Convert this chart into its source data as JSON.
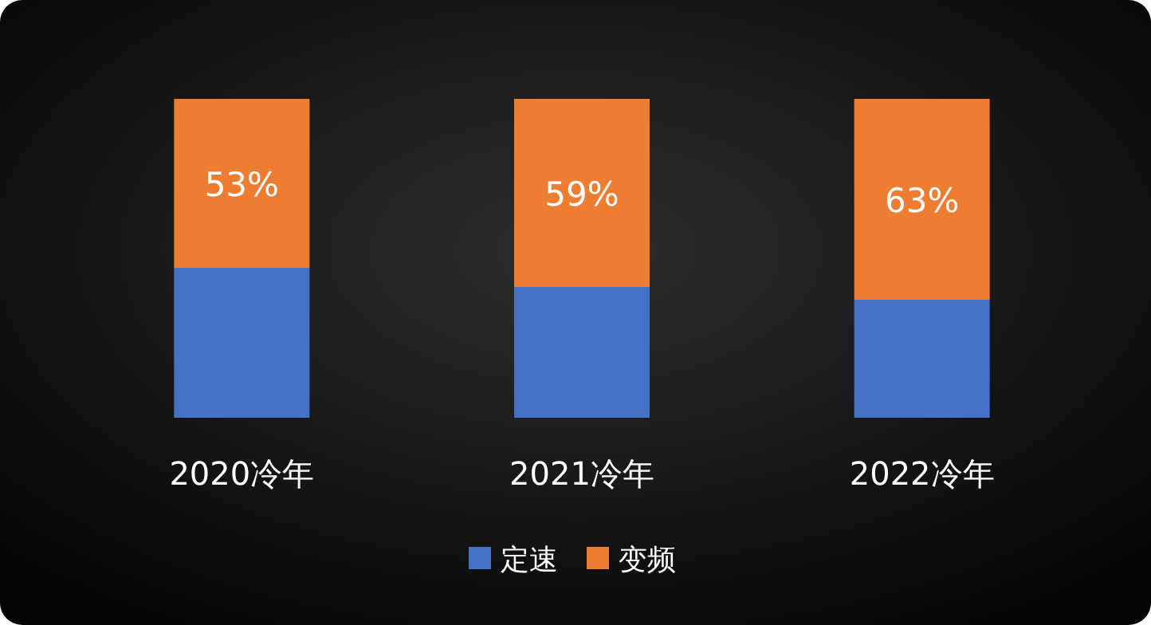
{
  "chart_data": {
    "type": "bar",
    "stacked": true,
    "legend": "bottom",
    "categories": [
      "2020冷年",
      "2021冷年",
      "2022冷年"
    ],
    "series": [
      {
        "name": "定速",
        "color": "#4472c4",
        "values": [
          47,
          41,
          37
        ]
      },
      {
        "name": "变频",
        "color": "#ed7d31",
        "values": [
          53,
          59,
          63
        ],
        "value_labels": [
          "53%",
          "59%",
          "63%"
        ]
      }
    ]
  }
}
